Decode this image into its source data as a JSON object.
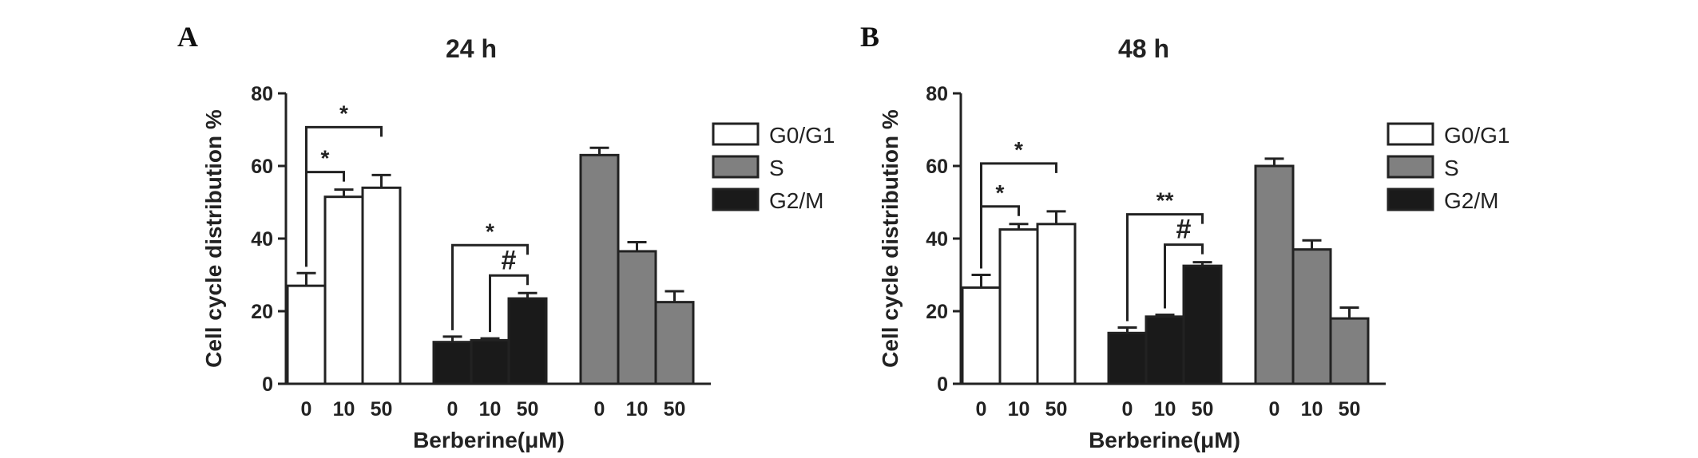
{
  "chart_data": [
    {
      "panel": "A",
      "type": "bar",
      "title": "24 h",
      "xlabel": "Berberine(μM)",
      "ylabel": "Cell cycle distribution %",
      "ylim": [
        0,
        80
      ],
      "yticks": [
        0,
        20,
        40,
        60,
        80
      ],
      "concentrations": [
        "0",
        "10",
        "50"
      ],
      "legend_position": "right",
      "series": [
        {
          "name": "G0/G1",
          "color": "#ffffff",
          "values": [
            27,
            51.5,
            54
          ],
          "errors": [
            3.5,
            2,
            3.5
          ]
        },
        {
          "name": "G2/M",
          "color": "#1a1a1a",
          "values": [
            11.5,
            12,
            23.5
          ],
          "errors": [
            1.5,
            0.5,
            1.5
          ]
        },
        {
          "name": "S",
          "color": "#808080",
          "values": [
            63,
            36.5,
            22.5
          ],
          "errors": [
            2,
            2.5,
            3
          ]
        }
      ],
      "annotations": [
        {
          "group": 0,
          "from": 0,
          "to": 2,
          "label": "*",
          "level": 0
        },
        {
          "group": 0,
          "from": 0,
          "to": 1,
          "label": "*",
          "level": 1
        },
        {
          "group": 1,
          "from": 0,
          "to": 2,
          "label": "*",
          "level": 0
        },
        {
          "group": 1,
          "from": 1,
          "to": 2,
          "label": "#",
          "level": 1
        }
      ]
    },
    {
      "panel": "B",
      "type": "bar",
      "title": "48 h",
      "xlabel": "Berberine(μM)",
      "ylabel": "Cell cycle distribution %",
      "ylim": [
        0,
        80
      ],
      "yticks": [
        0,
        20,
        40,
        60,
        80
      ],
      "concentrations": [
        "0",
        "10",
        "50"
      ],
      "legend_position": "right",
      "series": [
        {
          "name": "G0/G1",
          "color": "#ffffff",
          "values": [
            26.5,
            42.5,
            44
          ],
          "errors": [
            3.5,
            1.5,
            3.5
          ]
        },
        {
          "name": "G2/M",
          "color": "#1a1a1a",
          "values": [
            14,
            18.5,
            32.5
          ],
          "errors": [
            1.5,
            0.5,
            1
          ]
        },
        {
          "name": "S",
          "color": "#808080",
          "values": [
            60,
            37,
            18
          ],
          "errors": [
            2,
            2.5,
            3
          ]
        }
      ],
      "annotations": [
        {
          "group": 0,
          "from": 0,
          "to": 2,
          "label": "*",
          "level": 0
        },
        {
          "group": 0,
          "from": 0,
          "to": 1,
          "label": "*",
          "level": 1
        },
        {
          "group": 1,
          "from": 0,
          "to": 2,
          "label": "**",
          "level": 0
        },
        {
          "group": 1,
          "from": 1,
          "to": 2,
          "label": "#",
          "level": 1
        }
      ]
    }
  ],
  "legend": [
    {
      "label": "G0/G1",
      "color": "#ffffff"
    },
    {
      "label": "S",
      "color": "#808080"
    },
    {
      "label": "G2/M",
      "color": "#1a1a1a"
    }
  ]
}
